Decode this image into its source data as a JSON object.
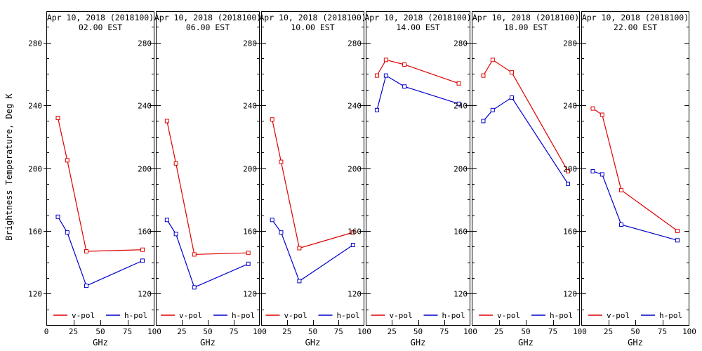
{
  "figure": {
    "ylabel": "Brightness Temperature, Deg K"
  },
  "chart_data": {
    "type": "line",
    "title": "Apr 10, 2018 (2018100)",
    "xlabel": "GHz",
    "ylabel": "Brightness Temperature, Deg K",
    "x": [
      10.7,
      19.35,
      37.0,
      89.0
    ],
    "xlim": [
      0,
      100
    ],
    "xticks": [
      0,
      25,
      50,
      75,
      100
    ],
    "ylim": [
      100,
      300
    ],
    "yticks": [
      120,
      160,
      200,
      240,
      280
    ],
    "y_minor_step": 10,
    "grid": false,
    "legend_position": "bottom-inside",
    "legend": [
      "v-pol",
      "h-pol"
    ],
    "colors": {
      "v_pol": "#e00000",
      "h_pol": "#0000cc"
    },
    "marker": "open-square",
    "panels": [
      {
        "title": "Apr 10, 2018 (2018100)",
        "subtitle": "02.00 EST",
        "series": [
          {
            "name": "v-pol",
            "values": [
              232,
              205,
              147,
              148
            ]
          },
          {
            "name": "h-pol",
            "values": [
              169,
              159,
              125,
              141
            ]
          }
        ]
      },
      {
        "title": "Apr 10, 2018 (2018100)",
        "subtitle": "06.00 EST",
        "series": [
          {
            "name": "v-pol",
            "values": [
              230,
              203,
              145,
              146
            ]
          },
          {
            "name": "h-pol",
            "values": [
              167,
              158,
              124,
              139
            ]
          }
        ]
      },
      {
        "title": "Apr 10, 2018 (2018100)",
        "subtitle": "10.00 EST",
        "series": [
          {
            "name": "v-pol",
            "values": [
              231,
              204,
              149,
              159
            ]
          },
          {
            "name": "h-pol",
            "values": [
              167,
              159,
              128,
              151
            ]
          }
        ]
      },
      {
        "title": "Apr 10, 2018 (2018100)",
        "subtitle": "14.00 EST",
        "series": [
          {
            "name": "v-pol",
            "values": [
              259,
              269,
              266,
              254
            ]
          },
          {
            "name": "h-pol",
            "values": [
              237,
              259,
              252,
              241
            ]
          }
        ]
      },
      {
        "title": "Apr 10, 2018 (2018100)",
        "subtitle": "18.00 EST",
        "series": [
          {
            "name": "v-pol",
            "values": [
              259,
              269,
              261,
              198
            ]
          },
          {
            "name": "h-pol",
            "values": [
              230,
              237,
              245,
              190
            ]
          }
        ]
      },
      {
        "title": "Apr 10, 2018 (2018100)",
        "subtitle": "22.00 EST",
        "series": [
          {
            "name": "v-pol",
            "values": [
              238,
              234,
              186,
              160
            ]
          },
          {
            "name": "h-pol",
            "values": [
              198,
              196,
              164,
              154
            ]
          }
        ]
      }
    ]
  }
}
